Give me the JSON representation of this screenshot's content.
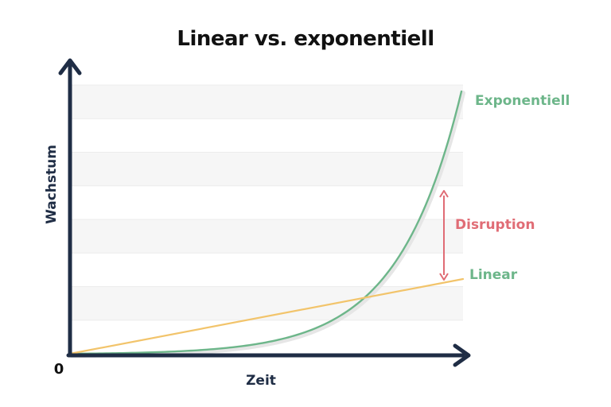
{
  "chart_data": {
    "type": "line",
    "title": "Linear vs. exponentiell",
    "xlabel": "Zeit",
    "ylabel": "Wachstum",
    "origin_label": "0",
    "xlim": [
      0,
      1
    ],
    "ylim": [
      0,
      1
    ],
    "grid": true,
    "series": [
      {
        "name": "Exponentiell",
        "color": "#6db68a",
        "x": [
          0,
          0.1,
          0.2,
          0.3,
          0.4,
          0.5,
          0.55,
          0.6,
          0.65,
          0.7,
          0.75,
          0.8,
          0.85,
          0.9,
          0.93,
          0.96,
          0.98,
          1.0
        ],
        "y": [
          0,
          0.002,
          0.005,
          0.01,
          0.019,
          0.038,
          0.055,
          0.079,
          0.113,
          0.162,
          0.232,
          0.333,
          0.478,
          0.685,
          0.842,
          1.035,
          1.19,
          1.0
        ]
      },
      {
        "name": "Linear",
        "color": "#f2c46b",
        "x": [
          0,
          1
        ],
        "y": [
          0,
          0.283
        ]
      }
    ],
    "annotations": [
      {
        "text": "Disruption",
        "x": 0.95,
        "y_from": 0.27,
        "y_to": 0.59,
        "color": "#e06c75"
      }
    ]
  }
}
